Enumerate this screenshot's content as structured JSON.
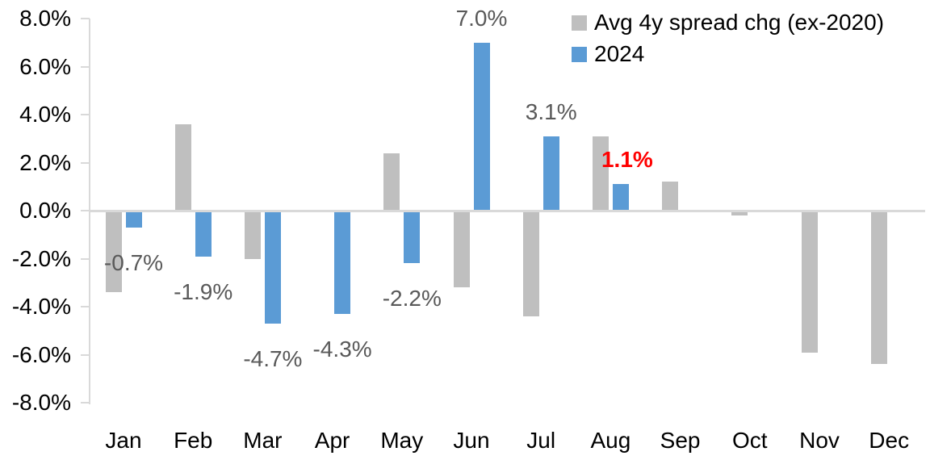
{
  "chart_data": {
    "type": "bar",
    "title": "",
    "xlabel": "",
    "ylabel": "",
    "categories": [
      "Jan",
      "Feb",
      "Mar",
      "Apr",
      "May",
      "Jun",
      "Jul",
      "Aug",
      "Sep",
      "Oct",
      "Nov",
      "Dec"
    ],
    "series": [
      {
        "name": "Avg 4y spread chg (ex-2020)",
        "slug": "avg4y",
        "color": "#BFBFBF",
        "values": [
          -3.4,
          3.6,
          -2.0,
          0.0,
          2.4,
          -3.2,
          -4.4,
          3.1,
          1.2,
          -0.2,
          -5.9,
          -6.4
        ]
      },
      {
        "name": "2024",
        "slug": "2024",
        "color": "#5B9BD5",
        "values": [
          -0.7,
          -1.9,
          -4.7,
          -4.3,
          -2.2,
          7.0,
          3.1,
          1.1,
          null,
          null,
          null,
          null
        ]
      }
    ],
    "data_labels": {
      "on_series": "2024",
      "texts": [
        "-0.7%",
        "-1.9%",
        "-4.7%",
        "-4.3%",
        "-2.2%",
        "7.0%",
        "3.1%",
        "1.1%",
        null,
        null,
        null,
        null
      ],
      "default_color": "#595959",
      "highlight_index": 7,
      "highlight_color": "#FF0000",
      "highlight_bold": true
    },
    "y_ticks": [
      {
        "value": 8,
        "label": "8.0%"
      },
      {
        "value": 6,
        "label": "6.0%"
      },
      {
        "value": 4,
        "label": "4.0%"
      },
      {
        "value": 2,
        "label": "2.0%"
      },
      {
        "value": 0,
        "label": "0.0%"
      },
      {
        "value": -2,
        "label": "-2.0%"
      },
      {
        "value": -4,
        "label": "-4.0%"
      },
      {
        "value": -6,
        "label": "-6.0%"
      },
      {
        "value": -8,
        "label": "-8.0%"
      }
    ],
    "ylim": [
      -8,
      8
    ],
    "grid": false,
    "legend_position": "top-right",
    "legend": [
      {
        "label": "Avg 4y spread chg (ex-2020)",
        "color": "#BFBFBF"
      },
      {
        "label": "2024",
        "color": "#5B9BD5"
      }
    ],
    "axis_color": "#D9D9D9"
  }
}
